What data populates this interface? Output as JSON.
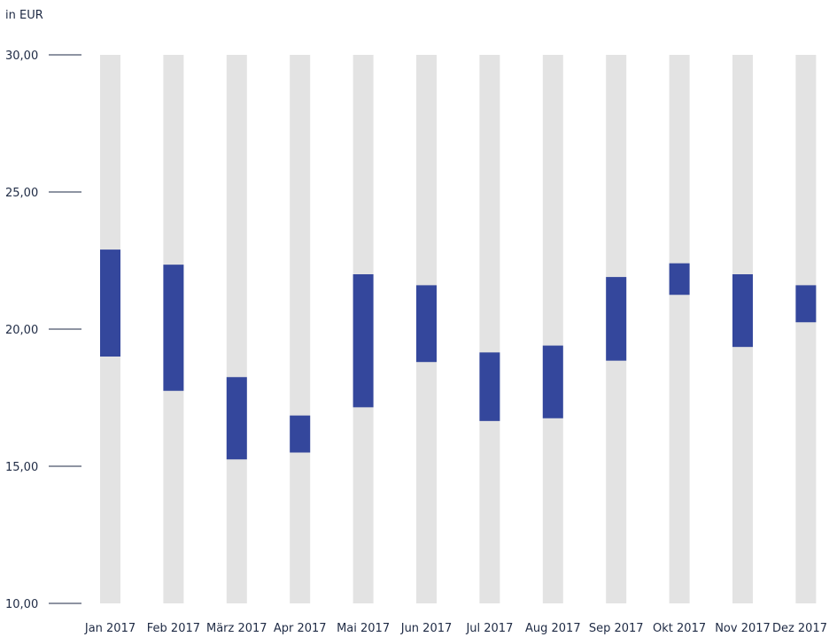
{
  "chart_data": {
    "type": "bar",
    "subtype": "floating-range",
    "title": "",
    "unit_label": "in EUR",
    "xlabel": "",
    "ylabel": "",
    "ylim": [
      10,
      30
    ],
    "y_ticks": [
      10,
      15,
      20,
      25,
      30
    ],
    "y_tick_labels": [
      "10,00",
      "15,00",
      "20,00",
      "25,00",
      "30,00"
    ],
    "categories": [
      "Jan 2017",
      "Feb 2017",
      "März 2017",
      "Apr 2017",
      "Mai 2017",
      "Jun 2017",
      "Jul 2017",
      "Aug 2017",
      "Sep 2017",
      "Okt 2017",
      "Nov 2017",
      "Dez 2017"
    ],
    "low": [
      19.0,
      17.75,
      15.25,
      15.5,
      17.15,
      18.8,
      16.65,
      16.75,
      18.85,
      21.25,
      19.35,
      20.25
    ],
    "high": [
      22.9,
      22.35,
      18.25,
      16.85,
      22.0,
      21.6,
      19.15,
      19.4,
      21.9,
      22.4,
      22.0,
      21.6
    ],
    "grid": false,
    "colors": {
      "range_bar": "#34479c",
      "background_bar": "#e3e3e3",
      "axis_text": "#1e2a44",
      "tick_line": "#1e2a44"
    }
  }
}
